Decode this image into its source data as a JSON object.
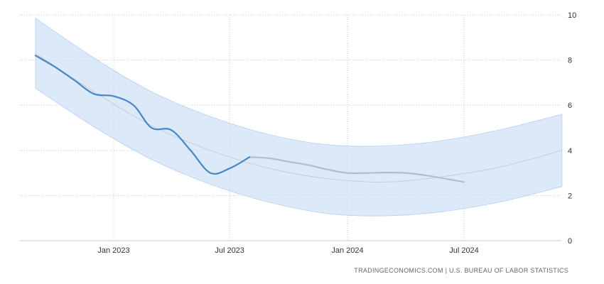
{
  "chart_data": {
    "type": "line",
    "source": "TRADINGECONOMICS.COM | U.S. BUREAU OF LABOR STATISTICS",
    "xaxis": {
      "ticks": [
        {
          "date": "2023-01-01",
          "label": "Jan 2023"
        },
        {
          "date": "2023-07-01",
          "label": "Jul 2023"
        },
        {
          "date": "2024-01-01",
          "label": "Jan 2024"
        },
        {
          "date": "2024-07-01",
          "label": "Jul 2024"
        }
      ],
      "range": [
        "2022-09-01",
        "2025-01-01"
      ]
    },
    "yaxis": {
      "position": "right",
      "ticks": [
        0,
        2,
        4,
        6,
        8,
        10
      ],
      "ylim": [
        0,
        10
      ]
    },
    "grid": true,
    "colors": {
      "actual": "#4a86c5",
      "forecast": "#b0bfd0",
      "trend": "#c8ccd4",
      "band": "#cfe1f7"
    },
    "series": [
      {
        "role": "actual",
        "x": [
          "2022-09-01",
          "2022-10-01",
          "2022-11-01",
          "2022-12-01",
          "2023-01-01",
          "2023-02-01",
          "2023-03-01",
          "2023-04-01",
          "2023-05-01",
          "2023-06-01",
          "2023-07-01",
          "2023-08-01"
        ],
        "y": [
          8.2,
          7.7,
          7.1,
          6.5,
          6.4,
          6.0,
          5.0,
          4.9,
          4.0,
          3.0,
          3.2,
          3.7
        ]
      },
      {
        "role": "forecast",
        "x": [
          "2023-08-01",
          "2023-09-01",
          "2023-10-01",
          "2023-11-01",
          "2023-12-01",
          "2024-01-01",
          "2024-02-01",
          "2024-03-01",
          "2024-04-01",
          "2024-05-01",
          "2024-06-01",
          "2024-07-01"
        ],
        "y": [
          3.7,
          3.65,
          3.5,
          3.35,
          3.15,
          3.0,
          3.0,
          3.02,
          3.0,
          2.9,
          2.75,
          2.6
        ]
      },
      {
        "role": "trend",
        "x": [
          "2022-09-01",
          "2022-12-01",
          "2023-03-01",
          "2023-06-01",
          "2023-09-01",
          "2023-12-01",
          "2024-03-01",
          "2024-06-01",
          "2024-09-01",
          "2024-12-01"
        ],
        "y": [
          8.3,
          6.6,
          5.1,
          4.0,
          3.2,
          2.75,
          2.6,
          2.85,
          3.3,
          4.0
        ]
      }
    ],
    "band": {
      "x": [
        "2022-09-01",
        "2022-12-01",
        "2023-03-01",
        "2023-06-01",
        "2023-09-01",
        "2023-12-01",
        "2024-03-01",
        "2024-06-01",
        "2024-09-01",
        "2024-12-01"
      ],
      "upper": [
        9.85,
        8.1,
        6.6,
        5.5,
        4.7,
        4.25,
        4.2,
        4.45,
        4.95,
        5.6
      ],
      "lower": [
        6.75,
        5.05,
        3.6,
        2.5,
        1.7,
        1.2,
        1.1,
        1.3,
        1.75,
        2.4
      ]
    }
  }
}
